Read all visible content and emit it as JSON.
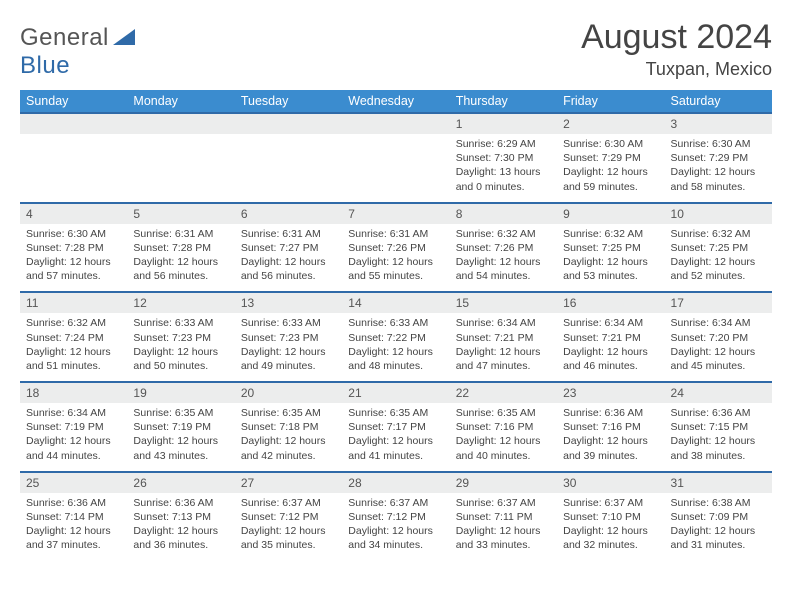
{
  "brand": {
    "word1": "General",
    "word2": "Blue"
  },
  "title": {
    "month": "August 2024",
    "location": "Tuxpan, Mexico"
  },
  "dow": [
    "Sunday",
    "Monday",
    "Tuesday",
    "Wednesday",
    "Thursday",
    "Friday",
    "Saturday"
  ],
  "colors": {
    "header_bg": "#3b8ccf",
    "daynum_bg": "#eceded",
    "row_border": "#2f6aa8",
    "text": "#444444",
    "brand_gray": "#555555",
    "brand_blue": "#2f6aa8",
    "background": "#ffffff"
  },
  "typography": {
    "month_fontsize": 34,
    "location_fontsize": 18,
    "dow_fontsize": 12.5,
    "daynum_fontsize": 12,
    "cell_fontsize": 10.5
  },
  "weeks": [
    [
      null,
      null,
      null,
      null,
      {
        "n": "1",
        "sr": "Sunrise: 6:29 AM",
        "ss": "Sunset: 7:30 PM",
        "dl": "Daylight: 13 hours and 0 minutes."
      },
      {
        "n": "2",
        "sr": "Sunrise: 6:30 AM",
        "ss": "Sunset: 7:29 PM",
        "dl": "Daylight: 12 hours and 59 minutes."
      },
      {
        "n": "3",
        "sr": "Sunrise: 6:30 AM",
        "ss": "Sunset: 7:29 PM",
        "dl": "Daylight: 12 hours and 58 minutes."
      }
    ],
    [
      {
        "n": "4",
        "sr": "Sunrise: 6:30 AM",
        "ss": "Sunset: 7:28 PM",
        "dl": "Daylight: 12 hours and 57 minutes."
      },
      {
        "n": "5",
        "sr": "Sunrise: 6:31 AM",
        "ss": "Sunset: 7:28 PM",
        "dl": "Daylight: 12 hours and 56 minutes."
      },
      {
        "n": "6",
        "sr": "Sunrise: 6:31 AM",
        "ss": "Sunset: 7:27 PM",
        "dl": "Daylight: 12 hours and 56 minutes."
      },
      {
        "n": "7",
        "sr": "Sunrise: 6:31 AM",
        "ss": "Sunset: 7:26 PM",
        "dl": "Daylight: 12 hours and 55 minutes."
      },
      {
        "n": "8",
        "sr": "Sunrise: 6:32 AM",
        "ss": "Sunset: 7:26 PM",
        "dl": "Daylight: 12 hours and 54 minutes."
      },
      {
        "n": "9",
        "sr": "Sunrise: 6:32 AM",
        "ss": "Sunset: 7:25 PM",
        "dl": "Daylight: 12 hours and 53 minutes."
      },
      {
        "n": "10",
        "sr": "Sunrise: 6:32 AM",
        "ss": "Sunset: 7:25 PM",
        "dl": "Daylight: 12 hours and 52 minutes."
      }
    ],
    [
      {
        "n": "11",
        "sr": "Sunrise: 6:32 AM",
        "ss": "Sunset: 7:24 PM",
        "dl": "Daylight: 12 hours and 51 minutes."
      },
      {
        "n": "12",
        "sr": "Sunrise: 6:33 AM",
        "ss": "Sunset: 7:23 PM",
        "dl": "Daylight: 12 hours and 50 minutes."
      },
      {
        "n": "13",
        "sr": "Sunrise: 6:33 AM",
        "ss": "Sunset: 7:23 PM",
        "dl": "Daylight: 12 hours and 49 minutes."
      },
      {
        "n": "14",
        "sr": "Sunrise: 6:33 AM",
        "ss": "Sunset: 7:22 PM",
        "dl": "Daylight: 12 hours and 48 minutes."
      },
      {
        "n": "15",
        "sr": "Sunrise: 6:34 AM",
        "ss": "Sunset: 7:21 PM",
        "dl": "Daylight: 12 hours and 47 minutes."
      },
      {
        "n": "16",
        "sr": "Sunrise: 6:34 AM",
        "ss": "Sunset: 7:21 PM",
        "dl": "Daylight: 12 hours and 46 minutes."
      },
      {
        "n": "17",
        "sr": "Sunrise: 6:34 AM",
        "ss": "Sunset: 7:20 PM",
        "dl": "Daylight: 12 hours and 45 minutes."
      }
    ],
    [
      {
        "n": "18",
        "sr": "Sunrise: 6:34 AM",
        "ss": "Sunset: 7:19 PM",
        "dl": "Daylight: 12 hours and 44 minutes."
      },
      {
        "n": "19",
        "sr": "Sunrise: 6:35 AM",
        "ss": "Sunset: 7:19 PM",
        "dl": "Daylight: 12 hours and 43 minutes."
      },
      {
        "n": "20",
        "sr": "Sunrise: 6:35 AM",
        "ss": "Sunset: 7:18 PM",
        "dl": "Daylight: 12 hours and 42 minutes."
      },
      {
        "n": "21",
        "sr": "Sunrise: 6:35 AM",
        "ss": "Sunset: 7:17 PM",
        "dl": "Daylight: 12 hours and 41 minutes."
      },
      {
        "n": "22",
        "sr": "Sunrise: 6:35 AM",
        "ss": "Sunset: 7:16 PM",
        "dl": "Daylight: 12 hours and 40 minutes."
      },
      {
        "n": "23",
        "sr": "Sunrise: 6:36 AM",
        "ss": "Sunset: 7:16 PM",
        "dl": "Daylight: 12 hours and 39 minutes."
      },
      {
        "n": "24",
        "sr": "Sunrise: 6:36 AM",
        "ss": "Sunset: 7:15 PM",
        "dl": "Daylight: 12 hours and 38 minutes."
      }
    ],
    [
      {
        "n": "25",
        "sr": "Sunrise: 6:36 AM",
        "ss": "Sunset: 7:14 PM",
        "dl": "Daylight: 12 hours and 37 minutes."
      },
      {
        "n": "26",
        "sr": "Sunrise: 6:36 AM",
        "ss": "Sunset: 7:13 PM",
        "dl": "Daylight: 12 hours and 36 minutes."
      },
      {
        "n": "27",
        "sr": "Sunrise: 6:37 AM",
        "ss": "Sunset: 7:12 PM",
        "dl": "Daylight: 12 hours and 35 minutes."
      },
      {
        "n": "28",
        "sr": "Sunrise: 6:37 AM",
        "ss": "Sunset: 7:12 PM",
        "dl": "Daylight: 12 hours and 34 minutes."
      },
      {
        "n": "29",
        "sr": "Sunrise: 6:37 AM",
        "ss": "Sunset: 7:11 PM",
        "dl": "Daylight: 12 hours and 33 minutes."
      },
      {
        "n": "30",
        "sr": "Sunrise: 6:37 AM",
        "ss": "Sunset: 7:10 PM",
        "dl": "Daylight: 12 hours and 32 minutes."
      },
      {
        "n": "31",
        "sr": "Sunrise: 6:38 AM",
        "ss": "Sunset: 7:09 PM",
        "dl": "Daylight: 12 hours and 31 minutes."
      }
    ]
  ]
}
